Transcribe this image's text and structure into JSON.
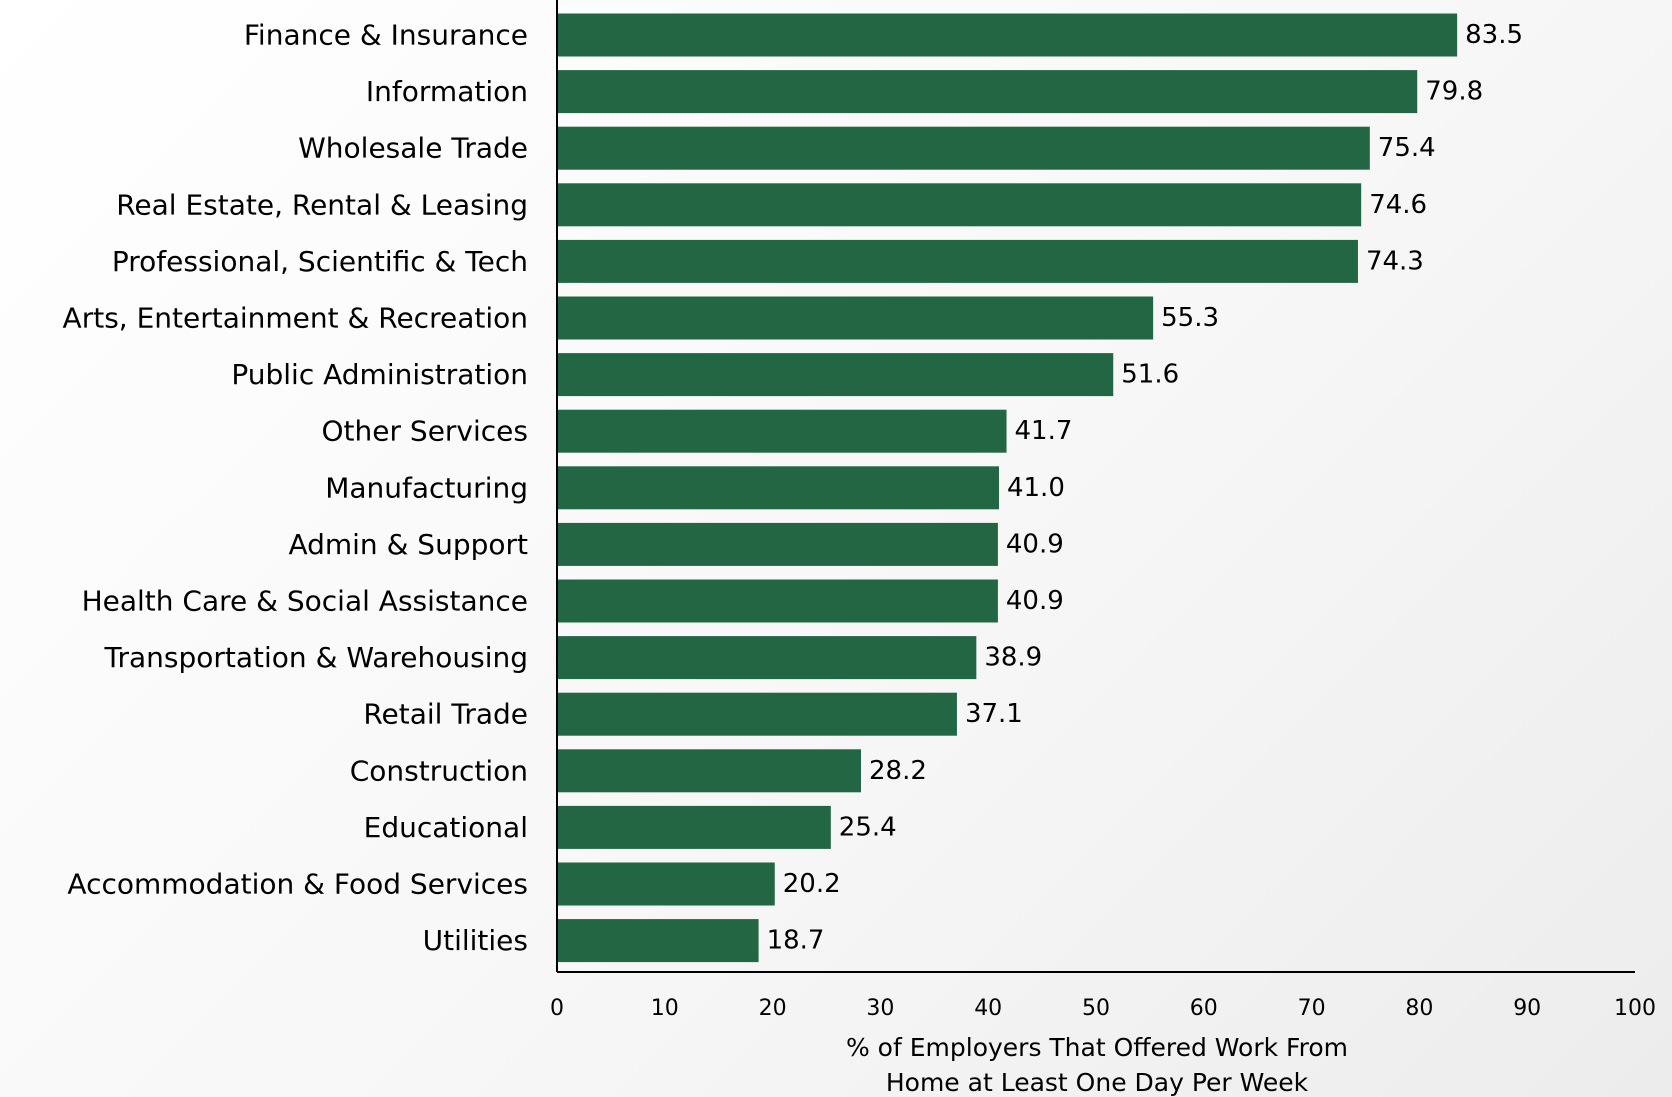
{
  "chart_data": {
    "type": "bar",
    "orientation": "horizontal",
    "title": "",
    "xlabel_lines": [
      "% of Employers That Offered Work From",
      "Home at Least One Day Per Week"
    ],
    "ylabel": "",
    "xlim": [
      0,
      100
    ],
    "x_ticks": [
      0,
      10,
      20,
      30,
      40,
      50,
      60,
      70,
      80,
      90,
      100
    ],
    "grid": false,
    "legend": "none",
    "bar_color": "#226644",
    "categories": [
      "Finance & Insurance",
      "Information",
      "Wholesale Trade",
      "Real Estate, Rental & Leasing",
      "Professional, Scientific & Tech",
      "Arts, Entertainment & Recreation",
      "Public Administration",
      "Other Services",
      "Manufacturing",
      "Admin & Support",
      "Health Care & Social Assistance",
      "Transportation & Warehousing",
      "Retail Trade",
      "Construction",
      "Educational",
      "Accommodation & Food Services",
      "Utilities"
    ],
    "values": [
      83.5,
      79.8,
      75.4,
      74.6,
      74.3,
      55.3,
      51.6,
      41.7,
      41.0,
      40.9,
      40.9,
      38.9,
      37.1,
      28.2,
      25.4,
      20.2,
      18.7
    ],
    "value_labels": [
      "83.5",
      "79.8",
      "75.4",
      "74.6",
      "74.3",
      "55.3",
      "51.6",
      "41.7",
      "41.0",
      "40.9",
      "40.9",
      "38.9",
      "37.1",
      "28.2",
      "25.4",
      "20.2",
      "18.7"
    ]
  }
}
